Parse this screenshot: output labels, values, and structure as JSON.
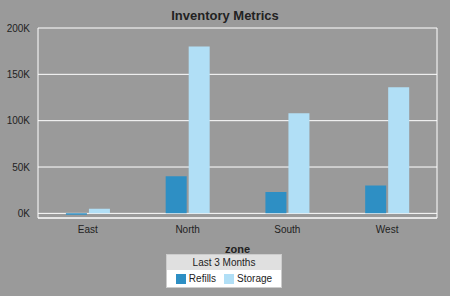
{
  "chart_data": {
    "type": "bar",
    "title": "Inventory Metrics",
    "x_label": "zone",
    "legend_title": "Last 3 Months",
    "categories": [
      "East",
      "North",
      "South",
      "West"
    ],
    "series": [
      {
        "name": "Refills",
        "color": "#2e8fc4",
        "values": [
          -1500,
          40000,
          23000,
          30000
        ]
      },
      {
        "name": "Storage",
        "color": "#b1dff6",
        "values": [
          5000,
          180000,
          108000,
          136000
        ]
      }
    ],
    "ylim": [
      -5000,
      200000
    ],
    "yticks": [
      {
        "value": 0,
        "label": "0K"
      },
      {
        "value": 50000,
        "label": "50K"
      },
      {
        "value": 100000,
        "label": "100K"
      },
      {
        "value": 150000,
        "label": "150K"
      },
      {
        "value": 200000,
        "label": "200K"
      }
    ],
    "grid": true,
    "legend": "bottom"
  }
}
